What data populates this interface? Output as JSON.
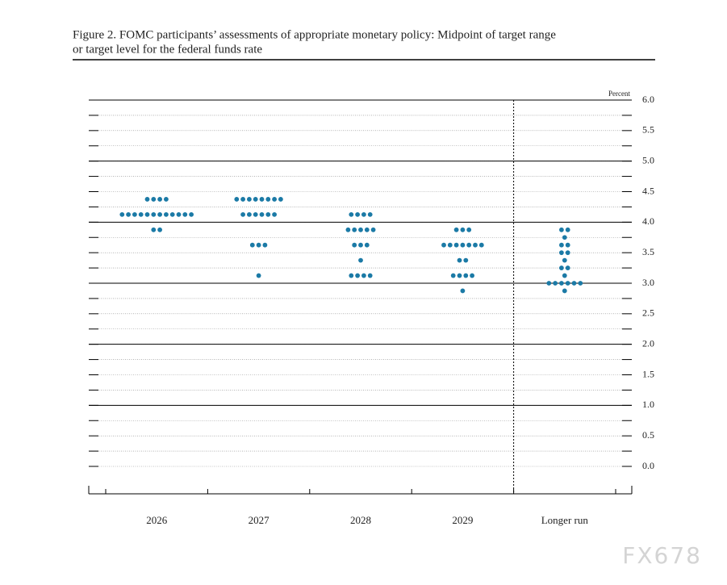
{
  "chart_data": {
    "type": "dot",
    "title": [
      "Figure 2. FOMC participants’ assessments of appropriate monetary policy: Midpoint of target range",
      "or target level for the federal funds rate"
    ],
    "y_label": "Percent",
    "watermark": "FX678",
    "color": "#1b7aa6",
    "categories": [
      "2026",
      "2027",
      "2028",
      "2029",
      "Longer run"
    ],
    "dots": [
      [
        {
          "value": 4.375,
          "count": 4
        },
        {
          "value": 4.125,
          "count": 12
        },
        {
          "value": 3.875,
          "count": 2
        }
      ],
      [
        {
          "value": 4.375,
          "count": 8
        },
        {
          "value": 4.125,
          "count": 6
        },
        {
          "value": 3.625,
          "count": 3
        },
        {
          "value": 3.125,
          "count": 1
        }
      ],
      [
        {
          "value": 4.125,
          "count": 4
        },
        {
          "value": 3.875,
          "count": 5
        },
        {
          "value": 3.625,
          "count": 3
        },
        {
          "value": 3.375,
          "count": 1
        },
        {
          "value": 3.125,
          "count": 4
        }
      ],
      [
        {
          "value": 3.875,
          "count": 3
        },
        {
          "value": 3.625,
          "count": 7
        },
        {
          "value": 3.375,
          "count": 2
        },
        {
          "value": 3.125,
          "count": 4
        },
        {
          "value": 2.875,
          "count": 1
        }
      ],
      [
        {
          "value": 3.875,
          "count": 2
        },
        {
          "value": 3.75,
          "count": 1
        },
        {
          "value": 3.625,
          "count": 2
        },
        {
          "value": 3.5,
          "count": 2
        },
        {
          "value": 3.375,
          "count": 1
        },
        {
          "value": 3.25,
          "count": 2
        },
        {
          "value": 3.125,
          "count": 1
        },
        {
          "value": 3.0,
          "count": 6
        },
        {
          "value": 2.875,
          "count": 1
        }
      ]
    ],
    "ylim": [
      0,
      6
    ],
    "yticks": [
      {
        "value": 0,
        "label": "0.0"
      },
      {
        "value": 0.5,
        "label": "0.5"
      },
      {
        "value": 1,
        "label": "1.0"
      },
      {
        "value": 1.5,
        "label": "1.5"
      },
      {
        "value": 2,
        "label": "2.0"
      },
      {
        "value": 2.5,
        "label": "2.5"
      },
      {
        "value": 3,
        "label": "3.0"
      },
      {
        "value": 3.5,
        "label": "3.5"
      },
      {
        "value": 4,
        "label": "4.0"
      },
      {
        "value": 4.5,
        "label": "4.5"
      },
      {
        "value": 5,
        "label": "5.0"
      },
      {
        "value": 5.5,
        "label": "5.5"
      },
      {
        "value": 6,
        "label": "6.0"
      }
    ],
    "major_gridlines": [
      1,
      2,
      3,
      4,
      5,
      6
    ],
    "minor_yticks": [
      0,
      0.25,
      0.5,
      0.75,
      1,
      1.25,
      1.5,
      1.75,
      2,
      2.25,
      2.5,
      2.75,
      3,
      3.25,
      3.5,
      3.75,
      4,
      4.25,
      4.5,
      4.75,
      5,
      5.25,
      5.5,
      5.75,
      6
    ]
  }
}
